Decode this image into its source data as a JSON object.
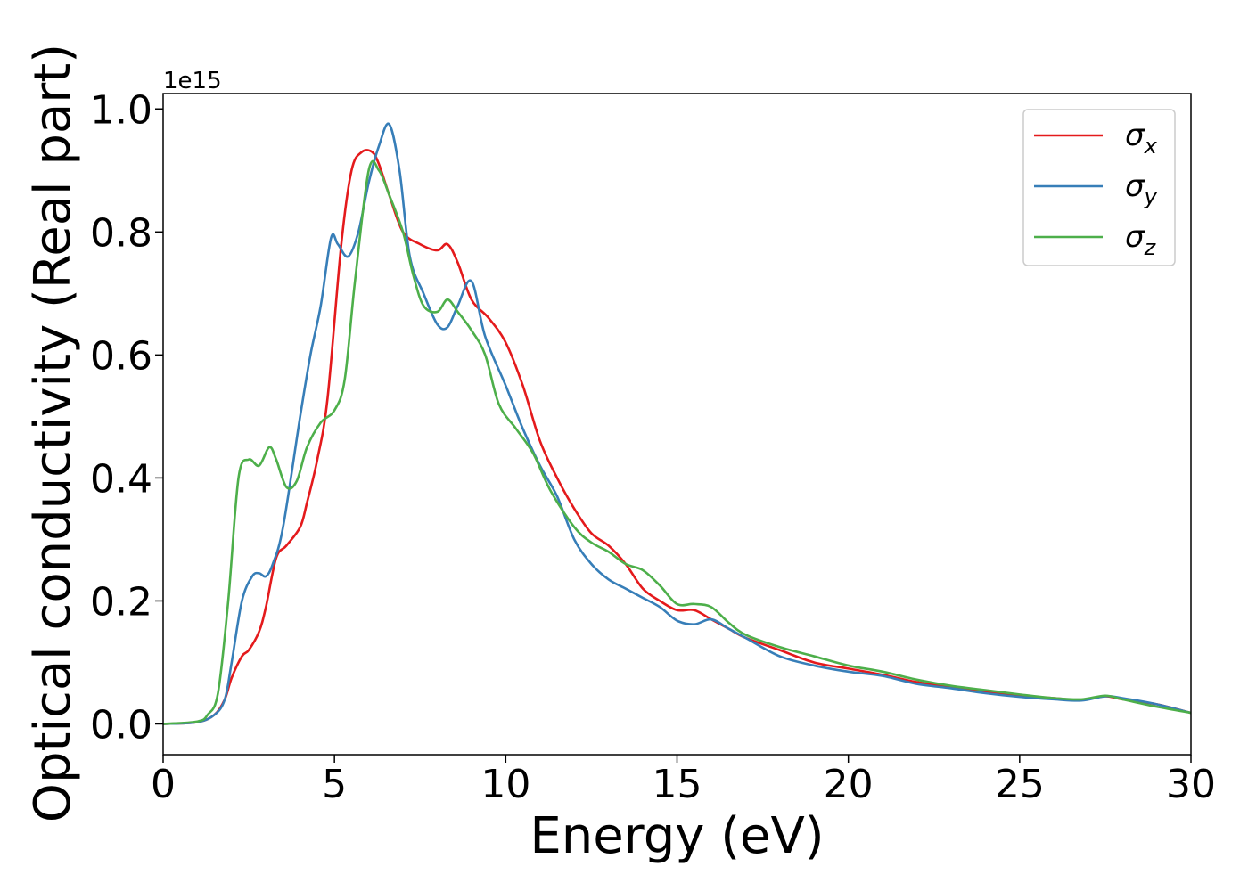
{
  "chart_data": {
    "type": "line",
    "xlabel": "Energy (eV)",
    "ylabel": "Optical conductivity (Real part)",
    "y_offset_label": "1e15",
    "y_scale": 1000000000000000.0,
    "xlim": [
      0,
      30
    ],
    "ylim": [
      -0.05,
      1.025
    ],
    "xticks": [
      0,
      5,
      10,
      15,
      20,
      25,
      30
    ],
    "xtick_labels": [
      "0",
      "5",
      "10",
      "15",
      "20",
      "25",
      "30"
    ],
    "yticks": [
      0.0,
      0.2,
      0.4,
      0.6,
      0.8,
      1.0
    ],
    "ytick_labels": [
      "0.0",
      "0.2",
      "0.4",
      "0.6",
      "0.8",
      "1.0"
    ],
    "grid": false,
    "legend_position": "top-right",
    "series": [
      {
        "name": "σx",
        "symbol": "σ",
        "subscript": "x",
        "color": "#e41a1c",
        "x": [
          0,
          1.0,
          1.5,
          1.8,
          2.0,
          2.3,
          2.5,
          2.8,
          3.0,
          3.3,
          3.6,
          4.0,
          4.2,
          4.5,
          4.8,
          5.2,
          5.5,
          5.8,
          6.1,
          6.3,
          6.6,
          7.0,
          7.5,
          8.0,
          8.3,
          8.6,
          9.0,
          9.5,
          10.0,
          10.5,
          11.0,
          11.5,
          12.0,
          12.5,
          13.0,
          13.5,
          14.0,
          14.5,
          15.0,
          15.5,
          16.0,
          16.5,
          17.0,
          18.0,
          19.0,
          20.0,
          21.0,
          22.0,
          23.0,
          24.0,
          25.0,
          26.0,
          26.8,
          27.5,
          28.0,
          29.0,
          30.0
        ],
        "values": [
          0.0,
          0.003,
          0.015,
          0.04,
          0.075,
          0.11,
          0.12,
          0.15,
          0.19,
          0.27,
          0.29,
          0.32,
          0.36,
          0.43,
          0.53,
          0.78,
          0.9,
          0.93,
          0.93,
          0.91,
          0.86,
          0.8,
          0.78,
          0.77,
          0.78,
          0.75,
          0.69,
          0.66,
          0.62,
          0.55,
          0.46,
          0.4,
          0.35,
          0.31,
          0.29,
          0.26,
          0.22,
          0.2,
          0.185,
          0.185,
          0.17,
          0.155,
          0.14,
          0.12,
          0.1,
          0.09,
          0.08,
          0.068,
          0.06,
          0.052,
          0.046,
          0.042,
          0.039,
          0.045,
          0.04,
          0.032,
          0.018
        ]
      },
      {
        "name": "σy",
        "symbol": "σ",
        "subscript": "y",
        "color": "#377eb8",
        "x": [
          0,
          1.0,
          1.5,
          1.8,
          2.0,
          2.3,
          2.6,
          2.8,
          3.0,
          3.2,
          3.5,
          4.0,
          4.3,
          4.6,
          4.9,
          5.1,
          5.4,
          5.7,
          6.0,
          6.3,
          6.6,
          6.9,
          7.2,
          7.6,
          8.0,
          8.3,
          8.6,
          9.0,
          9.4,
          10.0,
          10.5,
          11.0,
          11.5,
          12.0,
          12.5,
          13.0,
          13.5,
          14.0,
          14.5,
          15.0,
          15.5,
          16.0,
          16.5,
          17.0,
          18.0,
          19.0,
          20.0,
          21.0,
          22.0,
          23.0,
          24.0,
          25.0,
          26.0,
          26.8,
          27.5,
          28.0,
          29.0,
          30.0
        ],
        "values": [
          0.0,
          0.003,
          0.015,
          0.04,
          0.1,
          0.2,
          0.24,
          0.245,
          0.24,
          0.26,
          0.32,
          0.5,
          0.6,
          0.68,
          0.79,
          0.78,
          0.76,
          0.8,
          0.88,
          0.94,
          0.975,
          0.9,
          0.76,
          0.7,
          0.65,
          0.645,
          0.68,
          0.72,
          0.63,
          0.55,
          0.48,
          0.42,
          0.37,
          0.3,
          0.26,
          0.235,
          0.22,
          0.205,
          0.19,
          0.168,
          0.162,
          0.17,
          0.155,
          0.14,
          0.11,
          0.095,
          0.085,
          0.078,
          0.065,
          0.058,
          0.05,
          0.044,
          0.04,
          0.038,
          0.045,
          0.042,
          0.032,
          0.018
        ]
      },
      {
        "name": "σz",
        "symbol": "σ",
        "subscript": "z",
        "color": "#4daf4a",
        "x": [
          0,
          1.0,
          1.3,
          1.6,
          1.9,
          2.2,
          2.5,
          2.8,
          3.1,
          3.3,
          3.6,
          3.9,
          4.2,
          4.6,
          5.0,
          5.3,
          5.6,
          6.0,
          6.3,
          6.6,
          7.0,
          7.3,
          7.6,
          8.0,
          8.3,
          8.6,
          9.0,
          9.4,
          9.8,
          10.3,
          10.8,
          11.3,
          12.0,
          12.5,
          13.0,
          13.5,
          14.0,
          14.5,
          15.0,
          15.5,
          16.0,
          16.5,
          17.0,
          18.0,
          19.0,
          20.0,
          21.0,
          22.0,
          23.0,
          24.0,
          25.0,
          26.0,
          26.8,
          27.5,
          28.0,
          29.0,
          30.0
        ],
        "values": [
          0.0,
          0.004,
          0.015,
          0.05,
          0.2,
          0.4,
          0.43,
          0.42,
          0.45,
          0.43,
          0.385,
          0.395,
          0.45,
          0.49,
          0.51,
          0.56,
          0.72,
          0.9,
          0.9,
          0.86,
          0.8,
          0.73,
          0.68,
          0.67,
          0.69,
          0.67,
          0.64,
          0.6,
          0.52,
          0.48,
          0.44,
          0.38,
          0.32,
          0.295,
          0.28,
          0.26,
          0.25,
          0.225,
          0.195,
          0.195,
          0.19,
          0.165,
          0.145,
          0.125,
          0.11,
          0.095,
          0.085,
          0.072,
          0.062,
          0.055,
          0.048,
          0.042,
          0.04,
          0.046,
          0.04,
          0.028,
          0.018
        ]
      }
    ]
  }
}
